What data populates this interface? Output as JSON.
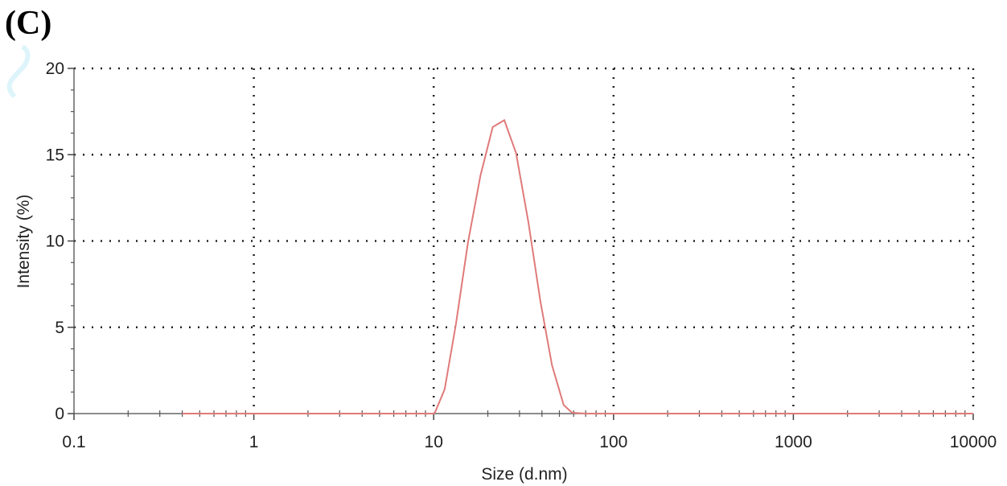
{
  "panel_label": "(C)",
  "chart_data": {
    "type": "line",
    "title": "",
    "xlabel": "Size (d.nm)",
    "ylabel": "Intensity (%)",
    "x_scale": "log",
    "xlim": [
      0.1,
      10000
    ],
    "ylim": [
      0,
      20
    ],
    "x_ticks": [
      0.1,
      1,
      10,
      100,
      1000,
      10000
    ],
    "x_tick_labels": [
      "0.1",
      "1",
      "10",
      "100",
      "1000",
      "10000"
    ],
    "y_ticks": [
      0,
      5,
      10,
      15,
      20
    ],
    "y_tick_labels": [
      "0",
      "5",
      "10",
      "15",
      "20"
    ],
    "grid": true,
    "grid_style": "dotted",
    "line_color": "#e07a7a",
    "series": [
      {
        "x": [
          0.4,
          1,
          5,
          10,
          10.2,
          11.5,
          13.3,
          15.5,
          18.2,
          21.3,
          24.7,
          28.7,
          33.6,
          39.2,
          45.5,
          52.8,
          58.8,
          70,
          100,
          1000,
          10000
        ],
        "y": [
          0,
          0,
          0,
          0,
          0.1,
          1.4,
          5.2,
          9.9,
          13.8,
          16.6,
          17.0,
          15.1,
          11.1,
          6.5,
          2.8,
          0.5,
          0.05,
          0,
          0,
          0,
          0
        ]
      }
    ]
  }
}
